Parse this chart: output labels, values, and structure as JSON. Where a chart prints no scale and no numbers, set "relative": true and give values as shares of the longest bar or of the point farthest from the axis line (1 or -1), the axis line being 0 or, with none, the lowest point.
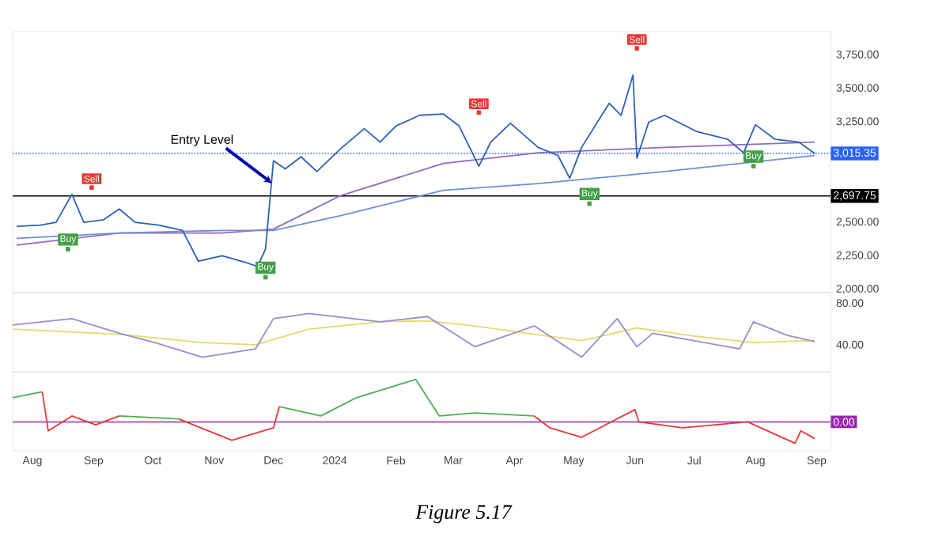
{
  "chart_data": [
    {
      "type": "line",
      "xlim": [
        "2023-07-22",
        "2024-09-08"
      ],
      "ylim": [
        1975,
        3925
      ],
      "yticks": [
        {
          "value": 2000,
          "label": "2,000.00"
        },
        {
          "value": 2250,
          "label": "2,250.00"
        },
        {
          "value": 2500,
          "label": "2,500.00"
        },
        {
          "value": 3250,
          "label": "3,250.00"
        },
        {
          "value": 3500,
          "label": "3,500.00"
        },
        {
          "value": 3750,
          "label": "3,750.00"
        }
      ],
      "tick_labels": "y",
      "series": [
        {
          "color": "#8e6bbf",
          "x": [
            "2023-07-24",
            "2023-09-14",
            "2023-11-05",
            "2023-12-01",
            "2024-01-04",
            "2024-02-25",
            "2024-04-13",
            "2024-06-16",
            "2024-08-31"
          ],
          "values": [
            2330,
            2420,
            2420,
            2450,
            2700,
            2940,
            3020,
            3060,
            3100
          ]
        },
        {
          "color": "#6f8fd0",
          "x": [
            "2023-07-24",
            "2023-09-14",
            "2023-11-05",
            "2023-12-01",
            "2024-01-04",
            "2024-02-25",
            "2024-04-13",
            "2024-06-16",
            "2024-08-31"
          ],
          "values": [
            2380,
            2420,
            2440,
            2440,
            2550,
            2740,
            2790,
            2880,
            3000
          ]
        },
        {
          "color": "#2f5fb3",
          "x": [
            "2023-07-24",
            "2023-08-05",
            "2023-08-13",
            "2023-08-21",
            "2023-08-27",
            "2023-09-06",
            "2023-09-14",
            "2023-09-22",
            "2023-10-04",
            "2023-10-16",
            "2023-10-24",
            "2023-11-05",
            "2023-11-17",
            "2023-11-23",
            "2023-11-27",
            "2023-12-01",
            "2023-12-07",
            "2023-12-15",
            "2023-12-23",
            "2024-01-04",
            "2024-01-16",
            "2024-01-24",
            "2024-02-01",
            "2024-02-13",
            "2024-02-25",
            "2024-03-04",
            "2024-03-14",
            "2024-03-20",
            "2024-03-30",
            "2024-04-13",
            "2024-04-23",
            "2024-04-29",
            "2024-05-05",
            "2024-05-19",
            "2024-05-25",
            "2024-05-31",
            "2024-06-02",
            "2024-06-08",
            "2024-06-16",
            "2024-07-02",
            "2024-07-18",
            "2024-07-26",
            "2024-08-01",
            "2024-08-11",
            "2024-08-23",
            "2024-08-31"
          ],
          "values": [
            2470,
            2480,
            2500,
            2710,
            2500,
            2520,
            2600,
            2500,
            2480,
            2440,
            2210,
            2250,
            2200,
            2170,
            2300,
            2960,
            2900,
            2990,
            2880,
            3050,
            3200,
            3100,
            3220,
            3300,
            3310,
            3220,
            2920,
            3100,
            3240,
            3060,
            3000,
            2830,
            3060,
            3390,
            3300,
            3600,
            2980,
            3250,
            3300,
            3180,
            3120,
            3020,
            3230,
            3120,
            3100,
            3015
          ]
        },
        {
          "type": "scatter",
          "color": "#e53935",
          "marker": "square",
          "x": [
            "2023-08-31",
            "2024-03-14",
            "2024-06-02"
          ],
          "values": [
            2760,
            3320,
            3800
          ],
          "value_labels": [
            "Sell",
            "Sell",
            "Sell"
          ]
        },
        {
          "type": "scatter",
          "color": "#43a047",
          "marker": "square",
          "x": [
            "2023-08-19",
            "2023-11-27",
            "2024-05-09",
            "2024-07-31"
          ],
          "values": [
            2300,
            2090,
            2640,
            2920
          ],
          "value_labels": [
            "Buy",
            "Buy",
            "Buy",
            "Buy"
          ]
        }
      ],
      "ref_lines": [
        {
          "axis": "y",
          "value": 2697.75,
          "label": "2,697.75",
          "color": "#000000"
        },
        {
          "axis": "y",
          "value": 3015.35,
          "label": "3,015.35",
          "color": "#2962ff",
          "line_style": "dotted"
        }
      ],
      "annotations": [
        {
          "text": "Entry Level",
          "x": "2023-12-01",
          "y": 2770
        }
      ]
    },
    {
      "type": "line",
      "xlim": [
        "2023-07-22",
        "2024-09-08"
      ],
      "ylim": [
        14,
        90
      ],
      "yticks": [
        {
          "value": 40,
          "label": "40.00"
        },
        {
          "value": 80,
          "label": "80.00"
        }
      ],
      "tick_labels": "y",
      "series": [
        {
          "color": "#e8d86a",
          "x": [
            "2023-07-22",
            "2023-09-14",
            "2023-10-26",
            "2023-11-22",
            "2023-12-19",
            "2024-01-24",
            "2024-02-17",
            "2024-03-12",
            "2024-04-11",
            "2024-05-05",
            "2024-06-02",
            "2024-07-02",
            "2024-07-31",
            "2024-08-31"
          ],
          "values": [
            55,
            50,
            42,
            40,
            55,
            62,
            63,
            58,
            50,
            44,
            56,
            48,
            42,
            44
          ]
        },
        {
          "color": "#9a8ccf",
          "x": [
            "2023-07-22",
            "2023-08-21",
            "2023-09-14",
            "2023-10-02",
            "2023-10-26",
            "2023-11-22",
            "2023-12-01",
            "2023-12-19",
            "2024-01-24",
            "2024-02-17",
            "2024-03-12",
            "2024-04-11",
            "2024-05-05",
            "2024-05-23",
            "2024-06-02",
            "2024-06-10",
            "2024-07-24",
            "2024-07-31",
            "2024-08-17",
            "2024-08-31"
          ],
          "values": [
            59,
            65,
            51,
            42,
            28,
            36,
            65,
            70,
            62,
            67,
            38,
            58,
            28,
            65,
            38,
            51,
            36,
            62,
            49,
            43
          ]
        }
      ]
    },
    {
      "type": "line",
      "relative": true,
      "xlim": [
        "2023-07-22",
        "2024-09-08"
      ],
      "xticks": [
        {
          "value": "2023-08-01",
          "label": "Aug"
        },
        {
          "value": "2023-09-01",
          "label": "Sep"
        },
        {
          "value": "2023-10-01",
          "label": "Oct"
        },
        {
          "value": "2023-11-01",
          "label": "Nov"
        },
        {
          "value": "2023-12-01",
          "label": "Dec"
        },
        {
          "value": "2024-01-01",
          "label": "2024"
        },
        {
          "value": "2024-02-01",
          "label": "Feb"
        },
        {
          "value": "2024-03-01",
          "label": "Mar"
        },
        {
          "value": "2024-04-01",
          "label": "Apr"
        },
        {
          "value": "2024-05-01",
          "label": "May"
        },
        {
          "value": "2024-06-01",
          "label": "Jun"
        },
        {
          "value": "2024-07-01",
          "label": "Jul"
        },
        {
          "value": "2024-08-01",
          "label": "Aug"
        },
        {
          "value": "2024-09-01",
          "label": "Sep"
        }
      ],
      "tick_labels": "x",
      "series": [
        {
          "color": "#4caf50",
          "x": [
            "2023-07-22",
            "2023-08-06",
            "2023-09-02",
            "2023-09-14",
            "2023-10-14",
            "2023-11-10",
            "2023-12-04",
            "2023-12-25",
            "2024-01-12",
            "2024-02-11",
            "2024-02-23",
            "2024-03-12",
            "2024-04-11"
          ],
          "values": [
            0.57,
            0.71,
            null,
            0.14,
            0.07,
            null,
            0.36,
            0.14,
            0.57,
            1,
            0.14,
            0.21,
            0.14
          ]
        },
        {
          "color": "#e53935",
          "x": [
            "2023-08-06",
            "2023-08-09",
            "2023-08-21",
            "2023-09-02",
            "2023-09-14",
            "2023-09-20",
            "2023-10-14",
            "2023-11-10",
            "2023-12-01",
            "2023-12-04",
            "2024-01-01",
            "2024-04-11",
            "2024-04-19",
            "2024-05-05",
            "2024-06-01",
            "2024-06-03",
            "2024-06-25",
            "2024-07-28",
            "2024-08-21",
            "2024-08-24",
            "2024-08-31"
          ],
          "values": [
            0.71,
            -0.21,
            0.14,
            -0.07,
            0.14,
            null,
            0.07,
            -0.43,
            -0.14,
            0.36,
            null,
            0.14,
            -0.14,
            -0.36,
            0.29,
            0,
            -0.14,
            0,
            -0.5,
            -0.21,
            -0.39
          ]
        }
      ],
      "ref_lines": [
        {
          "axis": "y",
          "value": 0,
          "label": "0.00",
          "color": "#9c27b0"
        }
      ],
      "annotations": [
        "Figure 5.17"
      ]
    }
  ]
}
